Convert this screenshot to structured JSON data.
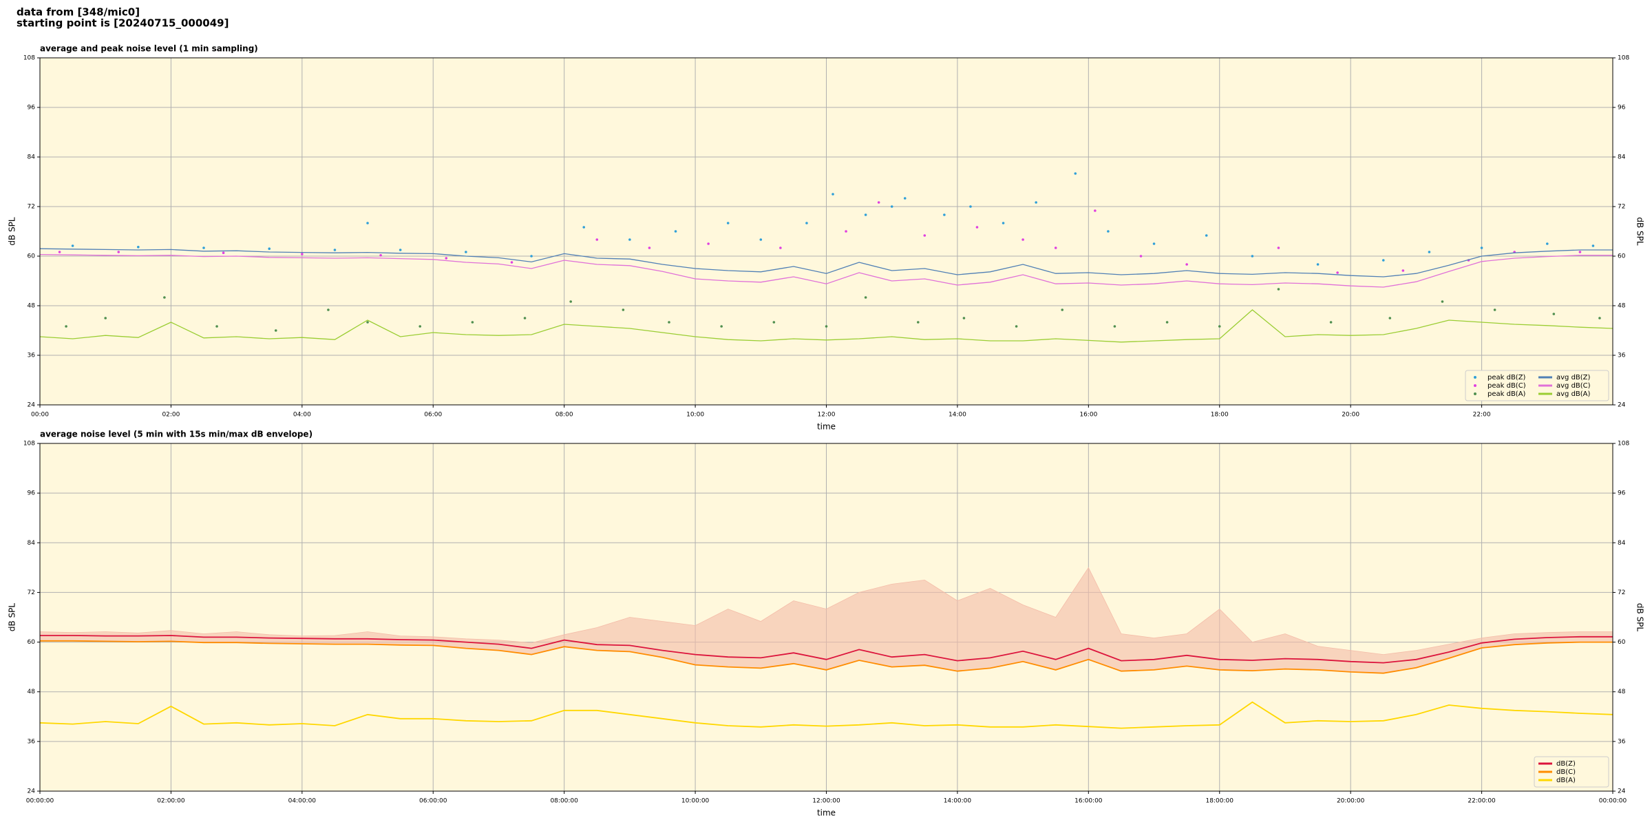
{
  "header": {
    "source": "data from [348/mic0]",
    "start": "starting point is [20240715_000049]"
  },
  "chart_data": [
    {
      "type": "line",
      "title": "average and peak noise level (1 min sampling)",
      "xlabel": "time",
      "ylabel": "dB SPL",
      "background": "#fff8dc",
      "grid": true,
      "legend": "lower right",
      "legend_columns": 2,
      "xlim": [
        0,
        24
      ],
      "ylim": [
        24,
        108
      ],
      "xticks": [
        {
          "value": 0,
          "label": "00:00"
        },
        {
          "value": 2,
          "label": "02:00"
        },
        {
          "value": 4,
          "label": "04:00"
        },
        {
          "value": 6,
          "label": "06:00"
        },
        {
          "value": 8,
          "label": "08:00"
        },
        {
          "value": 10,
          "label": "10:00"
        },
        {
          "value": 12,
          "label": "12:00"
        },
        {
          "value": 14,
          "label": "14:00"
        },
        {
          "value": 16,
          "label": "16:00"
        },
        {
          "value": 18,
          "label": "18:00"
        },
        {
          "value": 20,
          "label": "20:00"
        },
        {
          "value": 22,
          "label": "22:00"
        }
      ],
      "yticks": [
        24,
        36,
        48,
        60,
        72,
        84,
        96,
        108
      ],
      "series": [
        {
          "name": "peak dB(Z)",
          "type": "scatter",
          "color": "#2f9fd8",
          "x": [
            0.5,
            1.5,
            2.5,
            3.5,
            4.5,
            5,
            5.5,
            6.5,
            7.5,
            8.3,
            9,
            9.7,
            10.5,
            11,
            11.7,
            12.1,
            12.6,
            13,
            13.2,
            13.8,
            14.2,
            14.7,
            15.2,
            15.8,
            16.3,
            17,
            17.8,
            18.5,
            19.5,
            20.5,
            21.2,
            22,
            23,
            23.7
          ],
          "values": [
            62.5,
            62.2,
            62,
            61.8,
            61.5,
            68,
            61.5,
            61,
            60,
            67,
            64,
            66,
            68,
            64,
            68,
            75,
            70,
            72,
            74,
            70,
            72,
            68,
            73,
            80,
            66,
            63,
            65,
            60,
            58,
            59,
            61,
            62,
            63,
            62.5
          ]
        },
        {
          "name": "peak dB(C)",
          "type": "scatter",
          "color": "#e040e0",
          "x": [
            0.3,
            1.2,
            2.8,
            4,
            5.2,
            6.2,
            7.2,
            8.5,
            9.3,
            10.2,
            11.3,
            12.3,
            12.8,
            13.5,
            14.3,
            15,
            15.5,
            16.1,
            16.8,
            17.5,
            18.9,
            19.8,
            20.8,
            21.8,
            22.5,
            23.5
          ],
          "values": [
            61,
            61,
            60.8,
            60.5,
            60.2,
            59.5,
            58.5,
            64,
            62,
            63,
            62,
            66,
            73,
            65,
            67,
            64,
            62,
            71,
            60,
            58,
            62,
            56,
            56.5,
            59,
            61,
            61
          ]
        },
        {
          "name": "peak dB(A)",
          "type": "scatter",
          "color": "#4f8f4f",
          "x": [
            0.4,
            1,
            1.9,
            2.7,
            3.6,
            4.4,
            5,
            5.8,
            6.6,
            7.4,
            8.1,
            8.9,
            9.6,
            10.4,
            11.2,
            12,
            12.6,
            13.4,
            14.1,
            14.9,
            15.6,
            16.4,
            17.2,
            18,
            18.9,
            19.7,
            20.6,
            21.4,
            22.2,
            23.1,
            23.8
          ],
          "values": [
            43,
            45,
            50,
            43,
            42,
            47,
            44,
            43,
            44,
            45,
            49,
            47,
            44,
            43,
            44,
            43,
            50,
            44,
            45,
            43,
            47,
            43,
            44,
            43,
            52,
            44,
            45,
            49,
            47,
            46,
            45
          ]
        },
        {
          "name": "avg dB(Z)",
          "type": "line",
          "color": "#4f7fb5",
          "x": [
            0,
            0.5,
            1,
            1.5,
            2,
            2.5,
            3,
            3.5,
            4,
            4.5,
            5,
            5.5,
            6,
            6.5,
            7,
            7.5,
            8,
            8.5,
            9,
            9.5,
            10,
            10.5,
            11,
            11.5,
            12,
            12.5,
            13,
            13.5,
            14,
            14.5,
            15,
            15.5,
            16,
            16.5,
            17,
            17.5,
            18,
            18.5,
            19,
            19.5,
            20,
            20.5,
            21,
            21.5,
            22,
            22.5,
            23,
            23.5,
            24
          ],
          "values": [
            61.8,
            61.7,
            61.6,
            61.5,
            61.6,
            61.2,
            61.3,
            61.0,
            60.9,
            60.8,
            60.9,
            60.7,
            60.6,
            60.0,
            59.6,
            58.6,
            60.6,
            59.5,
            59.3,
            58.0,
            57.0,
            56.5,
            56.2,
            57.5,
            55.8,
            58.5,
            56.5,
            57.0,
            55.5,
            56.2,
            58.0,
            55.8,
            56.0,
            55.5,
            55.8,
            56.5,
            55.8,
            55.6,
            56.0,
            55.8,
            55.3,
            55.0,
            55.8,
            57.8,
            60.0,
            60.8,
            61.2,
            61.5,
            61.5
          ]
        },
        {
          "name": "avg dB(C)",
          "type": "line",
          "color": "#e070d8",
          "x": [
            0,
            0.5,
            1,
            1.5,
            2,
            2.5,
            3,
            3.5,
            4,
            4.5,
            5,
            5.5,
            6,
            6.5,
            7,
            7.5,
            8,
            8.5,
            9,
            9.5,
            10,
            10.5,
            11,
            11.5,
            12,
            12.5,
            13,
            13.5,
            14,
            14.5,
            15,
            15.5,
            16,
            16.5,
            17,
            17.5,
            18,
            18.5,
            19,
            19.5,
            20,
            20.5,
            21,
            21.5,
            22,
            22.5,
            23,
            23.5,
            24
          ],
          "values": [
            60.4,
            60.3,
            60.2,
            60.1,
            60.2,
            59.9,
            60.0,
            59.7,
            59.6,
            59.5,
            59.6,
            59.4,
            59.2,
            58.5,
            58.1,
            57.0,
            59.0,
            58.0,
            57.7,
            56.3,
            54.5,
            54.0,
            53.7,
            55.0,
            53.3,
            56.0,
            54.0,
            54.5,
            53.0,
            53.7,
            55.5,
            53.3,
            53.5,
            53.0,
            53.3,
            54.0,
            53.3,
            53.1,
            53.5,
            53.3,
            52.8,
            52.5,
            53.8,
            56.3,
            58.7,
            59.5,
            59.9,
            60.2,
            60.2
          ]
        },
        {
          "name": "avg dB(A)",
          "type": "line",
          "color": "#9acd32",
          "x": [
            0,
            0.5,
            1,
            1.5,
            2,
            2.5,
            3,
            3.5,
            4,
            4.5,
            5,
            5.5,
            6,
            6.5,
            7,
            7.5,
            8,
            8.5,
            9,
            9.5,
            10,
            10.5,
            11,
            11.5,
            12,
            12.5,
            13,
            13.5,
            14,
            14.5,
            15,
            15.5,
            16,
            16.5,
            17,
            17.5,
            18,
            18.5,
            19,
            19.5,
            20,
            20.5,
            21,
            21.5,
            22,
            22.5,
            23,
            23.5,
            24
          ],
          "values": [
            40.5,
            40.0,
            40.8,
            40.3,
            44.0,
            40.2,
            40.5,
            40.0,
            40.3,
            39.8,
            44.5,
            40.5,
            41.5,
            41.0,
            40.8,
            41.0,
            43.5,
            43.0,
            42.5,
            41.5,
            40.5,
            39.8,
            39.5,
            40.0,
            39.7,
            40.0,
            40.5,
            39.8,
            40.0,
            39.5,
            39.5,
            40.0,
            39.6,
            39.2,
            39.5,
            39.8,
            40.0,
            47.0,
            40.5,
            41.0,
            40.8,
            41.0,
            42.5,
            44.5,
            44.0,
            43.5,
            43.2,
            42.8,
            42.5
          ]
        }
      ]
    },
    {
      "type": "line",
      "title": "average noise level (5 min with 15s min/max dB envelope)",
      "xlabel": "time",
      "ylabel": "dB SPL",
      "background": "#fff8dc",
      "grid": true,
      "legend": "lower right",
      "legend_columns": 1,
      "xlim": [
        0,
        24
      ],
      "ylim": [
        24,
        108
      ],
      "xticks": [
        {
          "value": 0,
          "label": "00:00:00"
        },
        {
          "value": 2,
          "label": "02:00:00"
        },
        {
          "value": 4,
          "label": "04:00:00"
        },
        {
          "value": 6,
          "label": "06:00:00"
        },
        {
          "value": 8,
          "label": "08:00:00"
        },
        {
          "value": 10,
          "label": "10:00:00"
        },
        {
          "value": 12,
          "label": "12:00:00"
        },
        {
          "value": 14,
          "label": "14:00:00"
        },
        {
          "value": 16,
          "label": "16:00:00"
        },
        {
          "value": 18,
          "label": "18:00:00"
        },
        {
          "value": 20,
          "label": "20:00:00"
        },
        {
          "value": 22,
          "label": "22:00:00"
        },
        {
          "value": 24,
          "label": "00:00:00"
        }
      ],
      "yticks": [
        24,
        36,
        48,
        60,
        72,
        84,
        96,
        108
      ],
      "x": [
        0,
        0.5,
        1,
        1.5,
        2,
        2.5,
        3,
        3.5,
        4,
        4.5,
        5,
        5.5,
        6,
        6.5,
        7,
        7.5,
        8,
        8.5,
        9,
        9.5,
        10,
        10.5,
        11,
        11.5,
        12,
        12.5,
        13,
        13.5,
        14,
        14.5,
        15,
        15.5,
        16,
        16.5,
        17,
        17.5,
        18,
        18.5,
        19,
        19.5,
        20,
        20.5,
        21,
        21.5,
        22,
        22.5,
        23,
        23.5,
        24
      ],
      "envelope": {
        "color": "#f4bca8",
        "max": [
          62.5,
          62.3,
          62.5,
          62.2,
          62.8,
          62.0,
          62.5,
          61.8,
          61.5,
          61.6,
          62.5,
          61.5,
          61.3,
          60.8,
          60.5,
          59.8,
          61.8,
          63.5,
          66.0,
          65.0,
          64.0,
          68.0,
          65.0,
          70.0,
          68.0,
          72.0,
          74.0,
          75.0,
          70.0,
          73.0,
          69.0,
          66.0,
          78.0,
          62.0,
          61.0,
          62.0,
          68.0,
          60.0,
          62.0,
          59.0,
          58.0,
          57.0,
          58.0,
          59.5,
          61.0,
          62.0,
          62.3,
          62.5,
          62.5
        ]
      },
      "series": [
        {
          "name": "dB(Z)",
          "color": "#dc143c",
          "values": [
            61.6,
            61.6,
            61.5,
            61.5,
            61.6,
            61.2,
            61.2,
            61.0,
            60.9,
            60.8,
            60.8,
            60.6,
            60.5,
            60.0,
            59.5,
            58.5,
            60.5,
            59.4,
            59.2,
            58.0,
            57.0,
            56.4,
            56.2,
            57.4,
            55.8,
            58.2,
            56.4,
            57.0,
            55.5,
            56.2,
            57.8,
            55.8,
            58.5,
            55.5,
            55.8,
            56.8,
            55.8,
            55.6,
            56.0,
            55.8,
            55.3,
            55.0,
            55.8,
            57.6,
            59.8,
            60.7,
            61.1,
            61.3,
            61.3
          ]
        },
        {
          "name": "dB(C)",
          "color": "#ff8c00",
          "values": [
            60.3,
            60.3,
            60.2,
            60.1,
            60.2,
            59.9,
            59.9,
            59.7,
            59.6,
            59.5,
            59.5,
            59.3,
            59.2,
            58.5,
            58.0,
            57.0,
            58.9,
            58.0,
            57.7,
            56.3,
            54.5,
            54.0,
            53.7,
            54.8,
            53.3,
            55.6,
            54.0,
            54.4,
            53.0,
            53.7,
            55.3,
            53.3,
            55.8,
            53.0,
            53.3,
            54.2,
            53.3,
            53.1,
            53.5,
            53.3,
            52.8,
            52.5,
            53.8,
            56.1,
            58.6,
            59.4,
            59.8,
            60.0,
            60.0
          ]
        },
        {
          "name": "dB(A)",
          "color": "#ffd700",
          "values": [
            40.5,
            40.2,
            40.8,
            40.3,
            44.5,
            40.2,
            40.5,
            40.0,
            40.3,
            39.8,
            42.5,
            41.5,
            41.5,
            41.0,
            40.8,
            41.0,
            43.5,
            43.5,
            42.5,
            41.5,
            40.5,
            39.8,
            39.5,
            40.0,
            39.7,
            40.0,
            40.5,
            39.8,
            40.0,
            39.5,
            39.5,
            40.0,
            39.6,
            39.2,
            39.5,
            39.8,
            40.0,
            45.5,
            40.5,
            41.0,
            40.8,
            41.0,
            42.5,
            44.8,
            44.0,
            43.5,
            43.2,
            42.8,
            42.5
          ]
        }
      ]
    }
  ]
}
